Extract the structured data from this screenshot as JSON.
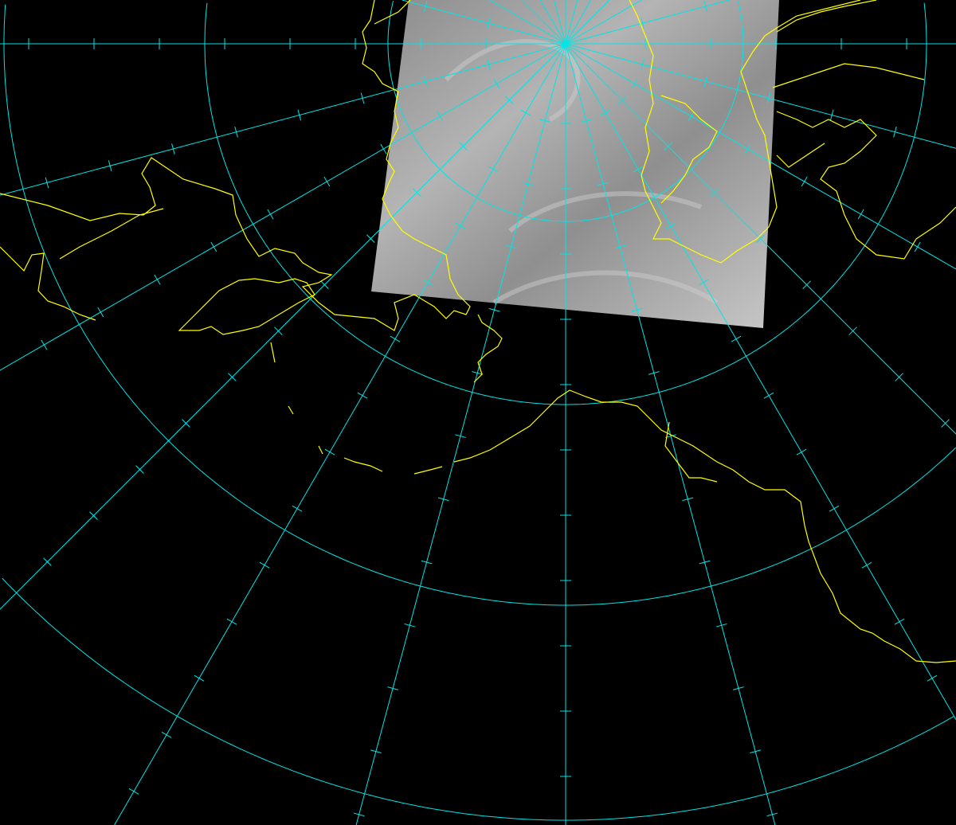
{
  "map": {
    "projection": "polar-stereographic",
    "background_color": "#000000",
    "graticule_color": "#00e5e5",
    "coastline_color": "#ffff00",
    "meridian_interval_deg": 15,
    "latitude_circle_count": 4,
    "satellite_overlay": {
      "type": "infrared-grayscale",
      "color": "#a0a0a0"
    }
  }
}
